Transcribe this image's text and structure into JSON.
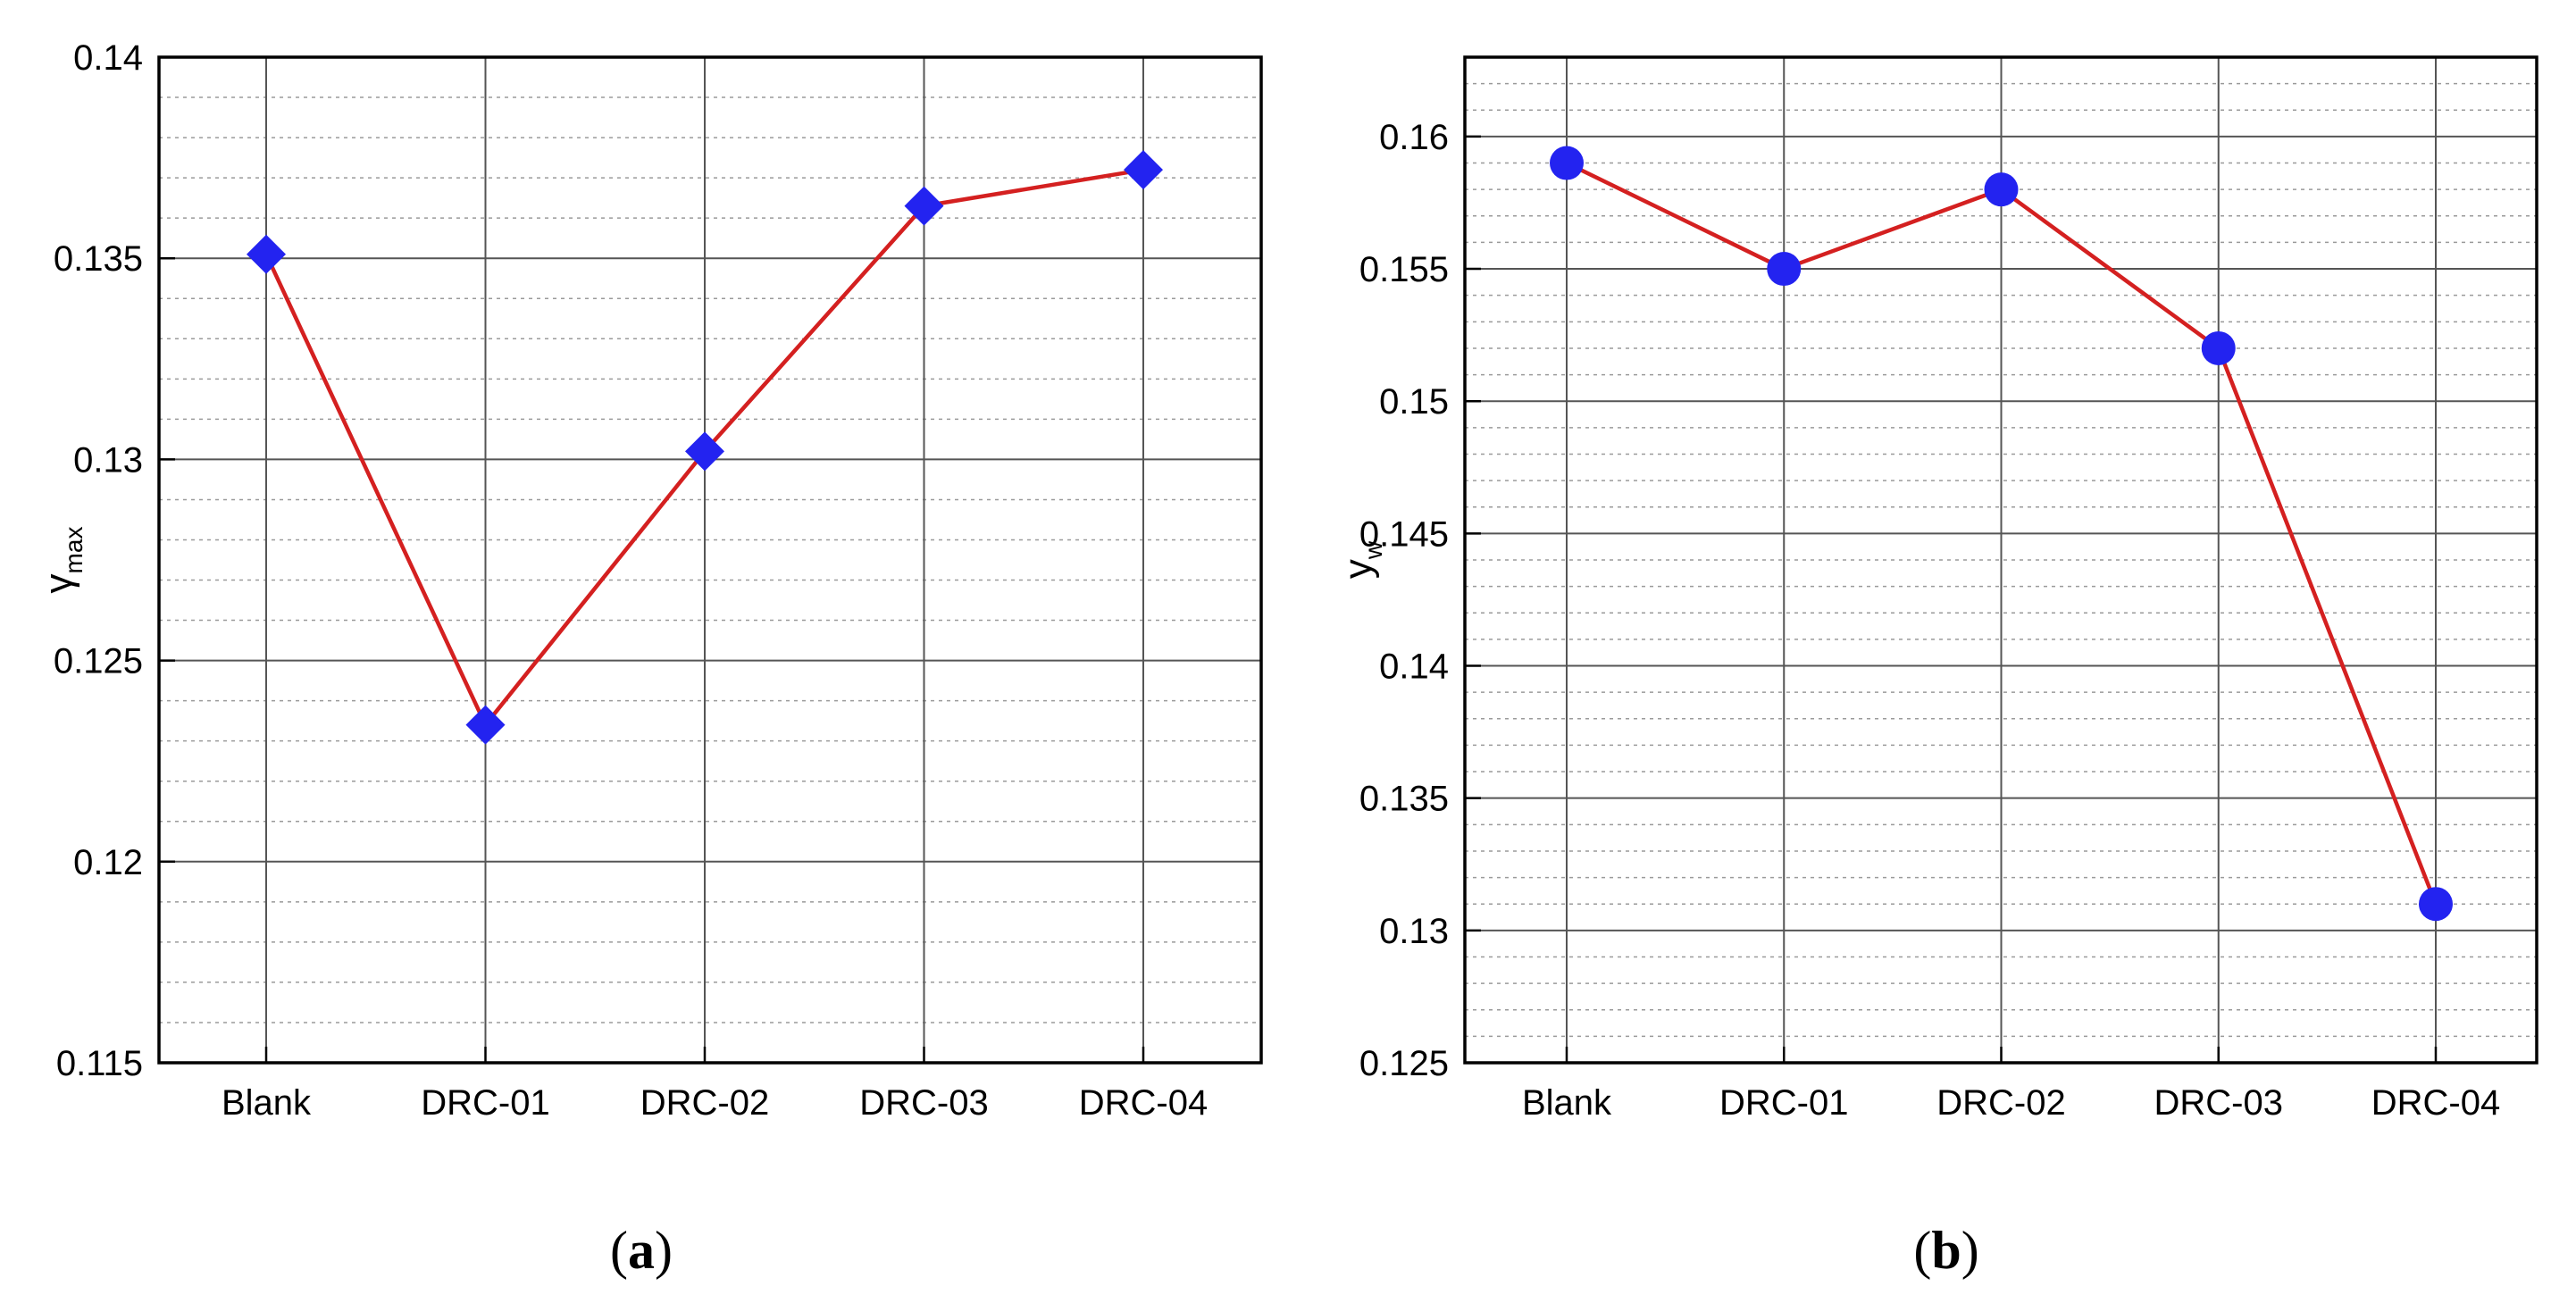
{
  "chart_data": [
    {
      "type": "line",
      "caption_letter": "a",
      "categories": [
        "Blank",
        "DRC-01",
        "DRC-02",
        "DRC-03",
        "DRC-04"
      ],
      "series": [
        {
          "values": [
            0.1351,
            0.1234,
            0.1302,
            0.1363,
            0.1372
          ],
          "marker": "diamond"
        }
      ],
      "ylabel_main": "γ",
      "ylabel_sub": "max",
      "ylim": [
        0.115,
        0.14
      ],
      "yticks": [
        "0.115",
        "0.12",
        "0.125",
        "0.13",
        "0.135",
        "0.14"
      ],
      "grid": true,
      "line_color": "#d42020",
      "marker_color": "#2323f0"
    },
    {
      "type": "line",
      "caption_letter": "b",
      "categories": [
        "Blank",
        "DRC-01",
        "DRC-02",
        "DRC-03",
        "DRC-04"
      ],
      "series": [
        {
          "values": [
            0.159,
            0.155,
            0.158,
            0.152,
            0.131
          ],
          "marker": "circle"
        }
      ],
      "ylabel_main": "y",
      "ylabel_sub": "w",
      "ylim": [
        0.125,
        0.163
      ],
      "yticks": [
        "0.125",
        "0.13",
        "0.135",
        "0.14",
        "0.145",
        "0.15",
        "0.155",
        "0.16"
      ],
      "grid": true,
      "line_color": "#d42020",
      "marker_color": "#2323f0"
    }
  ]
}
